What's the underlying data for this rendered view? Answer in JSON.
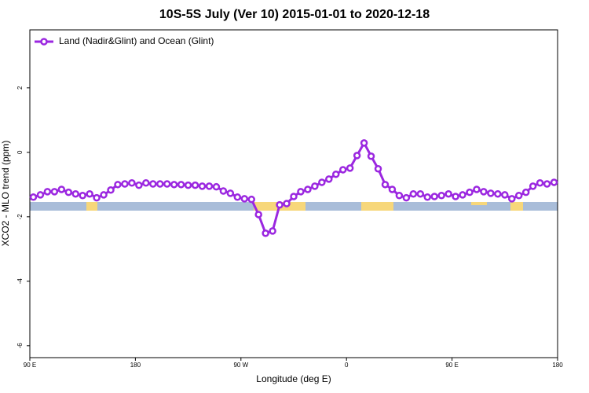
{
  "chart_data": {
    "type": "line",
    "title": "10S-5S July (Ver 10)   2015-01-01 to 2020-12-18",
    "x_label": "Longitude (deg E)",
    "y_label": "XCO2 - MLO trend (ppm)",
    "xlim": [
      90,
      540
    ],
    "xticks": [
      {
        "value": 90,
        "label": "90 E"
      },
      180,
      {
        "value": 270,
        "label": "90 W"
      },
      {
        "value": 360,
        "label": "0"
      },
      {
        "value": 450,
        "label": "90 E"
      },
      {
        "value": 540,
        "label": "180"
      }
    ],
    "ylim": [
      -6.37,
      3.8
    ],
    "yticks": [
      2,
      0,
      -2,
      -4,
      -6
    ],
    "legend": "top-left",
    "x": [
      93,
      99,
      105,
      111,
      117,
      123,
      129,
      135,
      141,
      147,
      153,
      159,
      165,
      171,
      177,
      183,
      189,
      195,
      201,
      207,
      213,
      219,
      225,
      231,
      237,
      243,
      249,
      255,
      261,
      267,
      273,
      279,
      285,
      291,
      297,
      303,
      309,
      315,
      321,
      327,
      333,
      339,
      345,
      351,
      357,
      363,
      369,
      375,
      381,
      387,
      393,
      399,
      405,
      411,
      417,
      423,
      429,
      435,
      441,
      447,
      453,
      459,
      465,
      471,
      477,
      483,
      489,
      495,
      501,
      507,
      513,
      519,
      525,
      531,
      537
    ],
    "series": [
      {
        "name": "Land (Nadir&Glint) and Ocean (Glint)",
        "color": "#9b27e0",
        "values": [
          -1.39,
          -1.32,
          -1.22,
          -1.22,
          -1.15,
          -1.24,
          -1.29,
          -1.34,
          -1.29,
          -1.41,
          -1.32,
          -1.17,
          -1.0,
          -0.98,
          -0.95,
          -1.02,
          -0.95,
          -0.98,
          -0.98,
          -0.98,
          -1.0,
          -1.0,
          -1.02,
          -1.02,
          -1.05,
          -1.05,
          -1.07,
          -1.2,
          -1.27,
          -1.39,
          -1.44,
          -1.46,
          -1.93,
          -2.51,
          -2.44,
          -1.63,
          -1.59,
          -1.37,
          -1.22,
          -1.15,
          -1.05,
          -0.93,
          -0.83,
          -0.68,
          -0.54,
          -0.49,
          -0.1,
          0.29,
          -0.12,
          -0.51,
          -1.0,
          -1.15,
          -1.34,
          -1.41,
          -1.29,
          -1.29,
          -1.39,
          -1.37,
          -1.34,
          -1.29,
          -1.37,
          -1.32,
          -1.24,
          -1.15,
          -1.22,
          -1.27,
          -1.29,
          -1.32,
          -1.44,
          -1.34,
          -1.24,
          -1.05,
          -0.95,
          -0.98,
          -0.93
        ]
      }
    ]
  }
}
